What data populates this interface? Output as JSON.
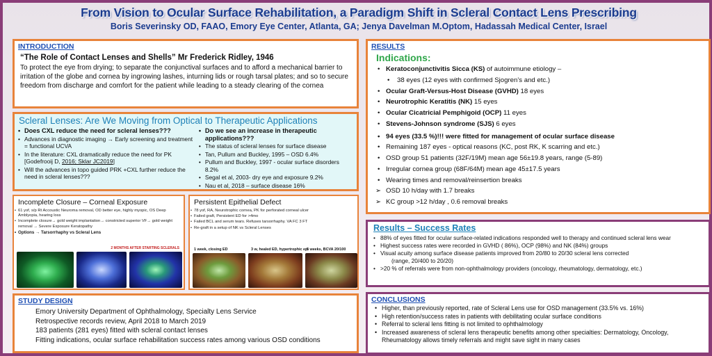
{
  "header": {
    "title": "From Vision to Ocular Surface Rehabilitation, a Paradigm Shift in Scleral Contact Lens Prescribing",
    "authors": "Boris Severinsky OD, FAAO, Emory Eye Center, Atlanta, GA; Jenya Davelman M.Optom, Hadassah Medical Center, Israel"
  },
  "introduction": {
    "heading": "INTRODUCTION",
    "quote": "“The Role of Contact Lenses and Shells” Mr Frederick Ridley, 1946",
    "body": "To protect the eye from drying; to separate the conjunctival surfaces and to afford a mechanical barrier to irritation of the globe and cornea by ingrowing lashes, inturning lids or rough tarsal plates; and so to secure freedom from discharge and comfort for the patient while leading to a steady clearing of the cornea"
  },
  "scleral": {
    "title": "Scleral Lenses: Are We Moving from Optical to Therapeutic Applications",
    "left": {
      "question": "Does CXL reduce the need for scleral lenses???",
      "b1": "Advances in diagnostic imaging → Early screening and treatment = functional UCVA",
      "b2a": "In the literature: CXL dramatically reduce the need for PK [Godefrooij D, ",
      "b2b": "2016; Sklar JC2019",
      "b2c": "]",
      "b3": "Will the advances in topo guided PRK +CXL further reduce the need in scleral lenses???"
    },
    "right": {
      "question": "Do we see an increase in therapeutic applications???",
      "r1": "The status of scleral lenses  for surface disease",
      "r2": "Tan, Pullum and Buckley, 1995 – OSD 6.4%",
      "r3": "Pullum and Buckley, 1997 - ocular surface disorders 8.2%",
      "r4": "Segal et al, 2003- dry eye and exposure 9.2%",
      "r5": "Nau et al, 2018 – surface disease 16%"
    }
  },
  "closure": {
    "title": "Incomplete Closure – Corneal Exposure",
    "l1": "61 yof, s/p Rt  Accoustic Neuroma removal, OD better eye, highly myopic, OS Deep Amblyopia, hearing loss",
    "l2": "Incomplete closure→ gold weight implantation→ constricted superior VF→ gold weight removal → Severe Exposure Keratopathy",
    "l3": "Options → Tarsorrhaphy vs Scleral Lens",
    "note": "2 MONTHS AFTER STARTING SCLERALS"
  },
  "defect": {
    "title": "Persistent Epithelial Defect",
    "l1": "78 yof, RA, Neurotrophic cornea, PK for perforated corneal ulcer",
    "l2": "Failed graft, Persistent ED for >4mo",
    "l3": "Failed BCL and serum tears. Refuses tarsorrhaphy. VA FC 3 FT",
    "l4": "Re-graft in a setup of NK vs Scleral Lenses",
    "cap1": "1 week, closing ED",
    "cap2": "3 w, healed ED, hypertrophic epi",
    "cap3": "5 weeks, BCVA 20/100"
  },
  "study": {
    "heading": "STUDY DESIGN",
    "lines": [
      "Emory University Department of Ophthalmology, Specialty Lens Service",
      "Retrospective records review, April 2018 to March 2019",
      "183 patients (281 eyes) fitted with scleral contact lenses",
      "Fitting indications, ocular surface rehabilitation success rates among various OSD conditions"
    ]
  },
  "results": {
    "heading": "RESULTS",
    "indications": "Indications:",
    "ks_b": "Keratoconjunctivitis Sicca (KS)",
    "ks_r": " of autoimmune etiology –",
    "ks_sub": "38 eyes (12 eyes with confirmed Sjogren’s and etc.)",
    "gvhd_b": "Ocular Graft-Versus-Host Disease (GVHD)",
    "gvhd_r": " 18 eyes",
    "nk_b": "Neurotrophic Keratitis (NK)",
    "nk_r": " 15 eyes",
    "ocp_b": "Ocular Cicatricial Pemphigoid (OCP)",
    "ocp_r": " 11 eyes",
    "sjs_b": "Stevens-Johnson syndrome (SJS)",
    "sjs_r": " 6 eyes",
    "osd94": "94 eyes (33.5 %)!!! were fitted for management of ocular surface disease",
    "remain": "Remaining 187 eyes - optical reasons (KC, post RK, K scarring and etc.)",
    "osd_group": "OSD group 51 patients (32F/19M) mean age 56±19.8 years, range (5-89)",
    "irreg": "Irregular cornea group (68F/64M) mean age 45±17.5 years",
    "wear": "Wearing times and removal/reinsertion breaks",
    "osd10": "OSD 10 h/day with 1.7 breaks",
    "kc12": "KC group >12 h/day , 0.6 removal breaks"
  },
  "success": {
    "heading": "Results – Success Rates",
    "s1": "88% of eyes fitted for ocular surface-related indications responded well to therapy and continued scleral lens wear",
    "s2": "Highest success rates were recorded in GVHD ( 86%), OCP (98%) and NK (84%) groups",
    "s3": "Visual acuity among surface disease patients improved from 20/80 to 20/30 scleral lens corrected",
    "s3b": "(range, 20/400 to 20/20)",
    "s4": ">20 % of referrals were from non-ophthalmology providers (oncology, rheumatology, dermatology, etc.)"
  },
  "conclusions": {
    "heading": "CONCLUSIONS",
    "c1": "Higher, than previously reported, rate of Scleral Lens use for OSD management (33.5% vs. 16%)",
    "c2": "High retention/success rates in patients with debilitating ocular surface conditions",
    "c3": "Referral to scleral lens fitting is not limited to ophthalmology",
    "c4": "Increased awareness of scleral lens therapeutic benefits among other specialties: Dermatology, Oncology, Rheumatology allows timely referrals and might save sight in many cases"
  }
}
